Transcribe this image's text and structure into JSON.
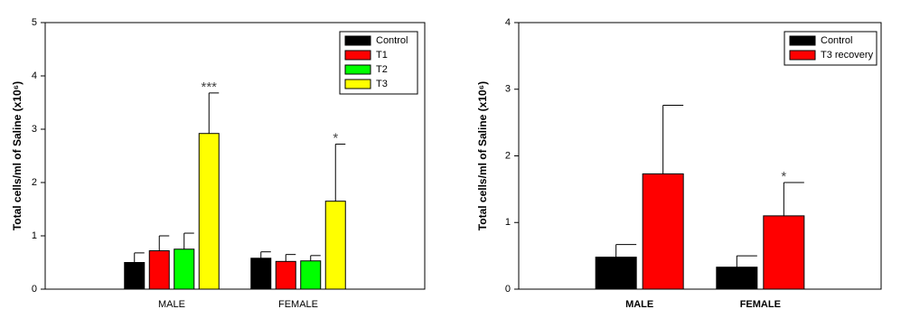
{
  "chart_data": [
    {
      "type": "bar",
      "y_label": "Total cells/ml of Saline (x10⁶)",
      "categories": [
        "MALE",
        "FEMALE"
      ],
      "ylim": [
        0,
        5
      ],
      "yticks": [
        0,
        1,
        2,
        3,
        4,
        5
      ],
      "legend": "upper right",
      "series": [
        {
          "name": "Control",
          "color": "#000000",
          "values": [
            0.5,
            0.58
          ],
          "errors": [
            0.18,
            0.12
          ],
          "annotations": [
            null,
            null
          ]
        },
        {
          "name": "T1",
          "color": "#ff0000",
          "values": [
            0.72,
            0.52
          ],
          "errors": [
            0.28,
            0.13
          ],
          "annotations": [
            null,
            null
          ]
        },
        {
          "name": "T2",
          "color": "#00ff00",
          "values": [
            0.75,
            0.53
          ],
          "errors": [
            0.3,
            0.1
          ],
          "annotations": [
            null,
            null
          ]
        },
        {
          "name": "T3",
          "color": "#ffff00",
          "values": [
            2.92,
            1.65
          ],
          "errors": [
            0.76,
            1.07
          ],
          "annotations": [
            "***",
            "*"
          ]
        }
      ]
    },
    {
      "type": "bar",
      "y_label": "Total cells/ml of Saline (x10⁶)",
      "categories": [
        "MALE",
        "FEMALE"
      ],
      "ylim": [
        0,
        4
      ],
      "yticks": [
        0,
        1,
        2,
        3,
        4
      ],
      "legend": "upper right",
      "series": [
        {
          "name": "Control",
          "color": "#000000",
          "values": [
            0.48,
            0.33
          ],
          "errors": [
            0.19,
            0.17
          ],
          "annotations": [
            null,
            null
          ]
        },
        {
          "name": "T3 recovery",
          "color": "#ff0000",
          "values": [
            1.73,
            1.1
          ],
          "errors": [
            1.03,
            0.5
          ],
          "annotations": [
            null,
            "*"
          ]
        }
      ]
    }
  ]
}
